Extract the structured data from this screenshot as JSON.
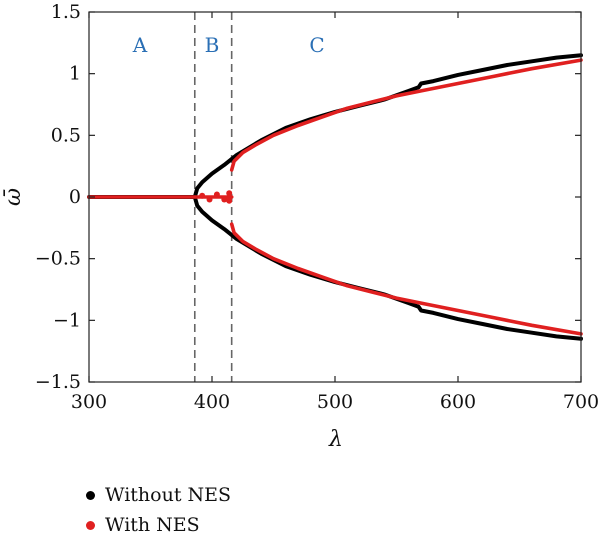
{
  "chart_data": {
    "type": "scatter",
    "xlabel": "λ",
    "ylabel": "ω̄",
    "xlim": [
      300,
      700
    ],
    "ylim": [
      -1.5,
      1.5
    ],
    "xticks": [
      300,
      400,
      500,
      600,
      700
    ],
    "xtick_labels": [
      "300",
      "400",
      "500",
      "600",
      "700"
    ],
    "yticks": [
      1.5,
      1,
      0.5,
      0,
      -0.5,
      -1,
      -1.5
    ],
    "ytick_labels": [
      "1.5",
      "1",
      "0.5",
      "0",
      "−0.5",
      "−1",
      "−1.5"
    ],
    "grid": false,
    "legend_position": "bottom-left (below plot)",
    "regions": [
      {
        "label": "A",
        "x_center": 340
      },
      {
        "label": "B",
        "x_center": 401
      },
      {
        "label": "C",
        "x_center": 485
      }
    ],
    "boundaries": [
      386,
      416
    ],
    "series": [
      {
        "name": "Without NES",
        "color": "#000000",
        "branches": [
          {
            "x": [
              300,
              386
            ],
            "y": [
              0,
              0
            ]
          },
          {
            "x": [
              386,
              388,
              392,
              400,
              410,
              420,
              440,
              460,
              480,
              500,
              520,
              540,
              560,
              568,
              570,
              580,
              600,
              620,
              640,
              660,
              680,
              700
            ],
            "y": [
              0,
              0.07,
              0.12,
              0.19,
              0.26,
              0.34,
              0.46,
              0.56,
              0.63,
              0.69,
              0.74,
              0.79,
              0.86,
              0.89,
              0.92,
              0.94,
              0.99,
              1.03,
              1.07,
              1.1,
              1.13,
              1.15
            ]
          },
          {
            "x": [
              386,
              388,
              392,
              400,
              410,
              420,
              440,
              460,
              480,
              500,
              520,
              540,
              560,
              568,
              570,
              580,
              600,
              620,
              640,
              660,
              680,
              700
            ],
            "y": [
              0,
              -0.07,
              -0.12,
              -0.19,
              -0.26,
              -0.34,
              -0.46,
              -0.56,
              -0.63,
              -0.69,
              -0.74,
              -0.79,
              -0.86,
              -0.89,
              -0.92,
              -0.94,
              -0.99,
              -1.03,
              -1.07,
              -1.1,
              -1.13,
              -1.15
            ]
          }
        ]
      },
      {
        "name": "With NES",
        "color": "#e02020",
        "branches": [
          {
            "x": [
              300,
              416
            ],
            "y": [
              0,
              0
            ]
          },
          {
            "x": [
              416,
              418,
              425,
              435,
              450,
              470,
              490,
              510,
              530,
              550,
              570,
              600,
              630,
              660,
              700
            ],
            "y": [
              0.22,
              0.29,
              0.36,
              0.42,
              0.5,
              0.58,
              0.65,
              0.72,
              0.77,
              0.82,
              0.86,
              0.92,
              0.98,
              1.04,
              1.11
            ]
          },
          {
            "x": [
              416,
              418,
              425,
              435,
              450,
              470,
              490,
              510,
              530,
              550,
              570,
              600,
              630,
              660,
              700
            ],
            "y": [
              -0.22,
              -0.29,
              -0.36,
              -0.42,
              -0.5,
              -0.58,
              -0.65,
              -0.72,
              -0.77,
              -0.82,
              -0.86,
              -0.92,
              -0.98,
              -1.04,
              -1.11
            ]
          }
        ]
      }
    ]
  }
}
